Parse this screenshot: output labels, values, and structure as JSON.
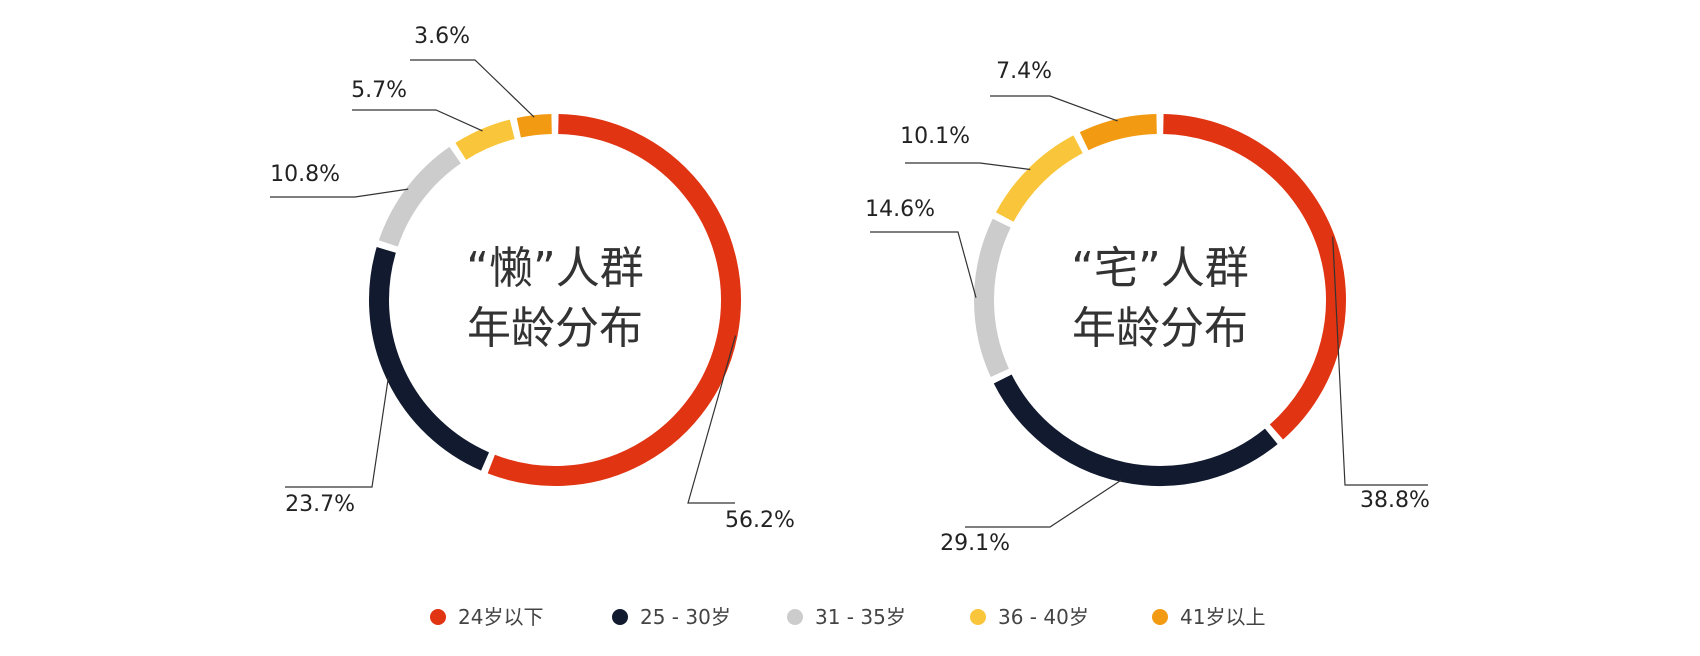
{
  "chart_data": [
    {
      "type": "pie",
      "variant": "donut",
      "title_lines": [
        "“懒”人群",
        "年龄分布"
      ],
      "categories": [
        "24岁以下",
        "25 - 30岁",
        "31 - 35岁",
        "36 - 40岁",
        "41岁以上"
      ],
      "values": [
        56.2,
        23.7,
        10.8,
        5.7,
        3.6
      ],
      "labels": [
        "56.2%",
        "23.7%",
        "10.8%",
        "5.7%",
        "3.6%"
      ]
    },
    {
      "type": "pie",
      "variant": "donut",
      "title_lines": [
        "“宅”人群",
        "年龄分布"
      ],
      "categories": [
        "24岁以下",
        "25 - 30岁",
        "31 - 35岁",
        "36 - 40岁",
        "41岁以上"
      ],
      "values": [
        38.8,
        29.1,
        14.6,
        10.1,
        7.4
      ],
      "labels": [
        "38.8%",
        "29.1%",
        "14.6%",
        "10.1%",
        "7.4%"
      ]
    }
  ],
  "colors": [
    "#e03412",
    "#111a2e",
    "#cccccc",
    "#f9c53a",
    "#f29a12"
  ],
  "legend": {
    "placement": "bottom",
    "items": [
      "24岁以下",
      "25 - 30岁",
      "31 - 35岁",
      "36 - 40岁",
      "41岁以上"
    ]
  }
}
